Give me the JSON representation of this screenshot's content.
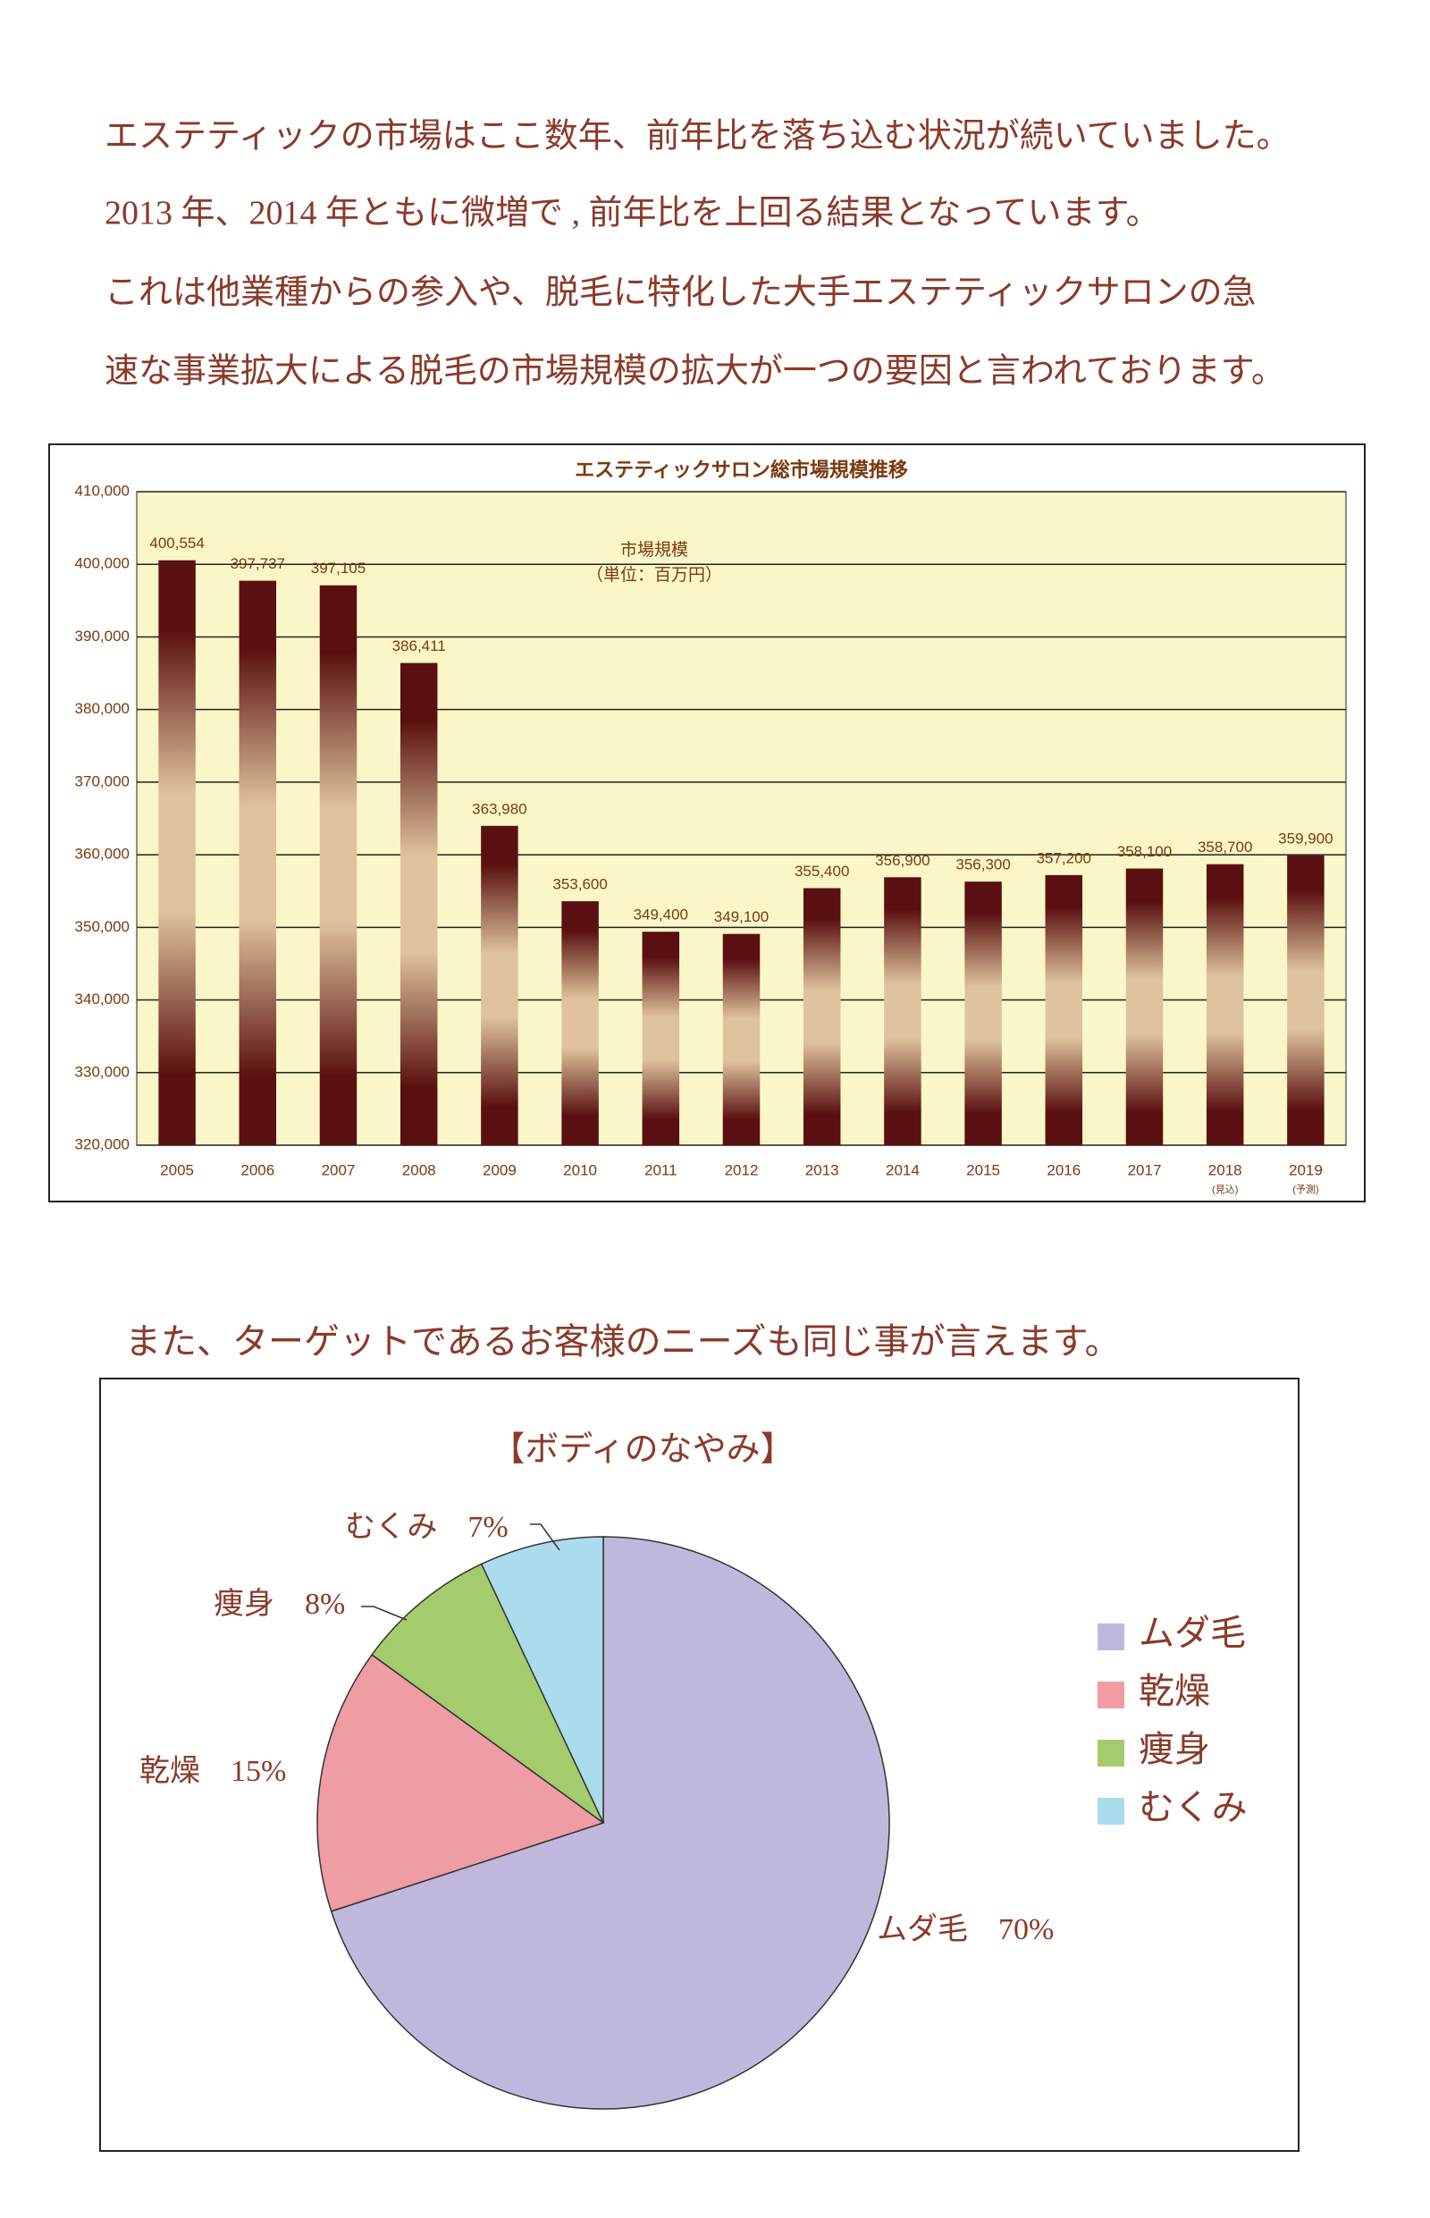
{
  "paragraphs": [
    "エステティックの市場はここ数年、前年比を落ち込む状況が続いていました。",
    "2013 年、2014 年ともに微増で , 前年比を上回る結果となっています。",
    "これは他業種からの参入や、脱毛に特化した大手エステティックサロンの急",
    "速な事業拡大による脱毛の市場規模の拡大が一つの要因と言われております。"
  ],
  "caption": "また、ターゲットであるお客様のニーズも同じ事が言えます。",
  "chart_data": [
    {
      "type": "bar",
      "title": "エステティックサロン総市場規模推移",
      "annotation": [
        "市場規模",
        "（単位：百万円）"
      ],
      "categories": [
        "2005",
        "2006",
        "2007",
        "2008",
        "2009",
        "2010",
        "2011",
        "2012",
        "2013",
        "2014",
        "2015",
        "2016",
        "2017",
        "2018",
        "2019"
      ],
      "category_notes": [
        null,
        null,
        null,
        null,
        null,
        null,
        null,
        null,
        null,
        null,
        null,
        null,
        null,
        "(見込)",
        "(予測)"
      ],
      "values": [
        400554,
        397737,
        397105,
        386411,
        363980,
        353600,
        349400,
        349100,
        355400,
        356900,
        356300,
        357200,
        358100,
        358700,
        359900
      ],
      "value_labels": [
        "400,554",
        "397,737",
        "397,105",
        "386,411",
        "363,980",
        "353,600",
        "349,400",
        "349,100",
        "355,400",
        "356,900",
        "356,300",
        "357,200",
        "358,100",
        "358,700",
        "359,900"
      ],
      "ylim": [
        320000,
        410000
      ],
      "yticks": [
        {
          "value": 320000,
          "label": "320,000"
        },
        {
          "value": 330000,
          "label": "330,000"
        },
        {
          "value": 340000,
          "label": "340,000"
        },
        {
          "value": 350000,
          "label": "350,000"
        },
        {
          "value": 360000,
          "label": "360,000"
        },
        {
          "value": 370000,
          "label": "370,000"
        },
        {
          "value": 380000,
          "label": "380,000"
        },
        {
          "value": 390000,
          "label": "390,000"
        },
        {
          "value": 400000,
          "label": "400,000"
        },
        {
          "value": 410000,
          "label": "410,000"
        }
      ],
      "grid": true,
      "color": "#5a1010",
      "highlight_color": "#dfc39c",
      "background": "#fbf6c8"
    },
    {
      "type": "pie",
      "title": "【ボディのなやみ】",
      "categories": [
        "ムダ毛",
        "乾燥",
        "痩身",
        "むくみ"
      ],
      "values": [
        70,
        15,
        8,
        7
      ],
      "value_labels": [
        "70%",
        "15%",
        "8%",
        "7%"
      ],
      "colors": [
        "#c0b8dc",
        "#f09ca4",
        "#a4cc6c",
        "#acdcec"
      ],
      "legend": "right"
    }
  ]
}
